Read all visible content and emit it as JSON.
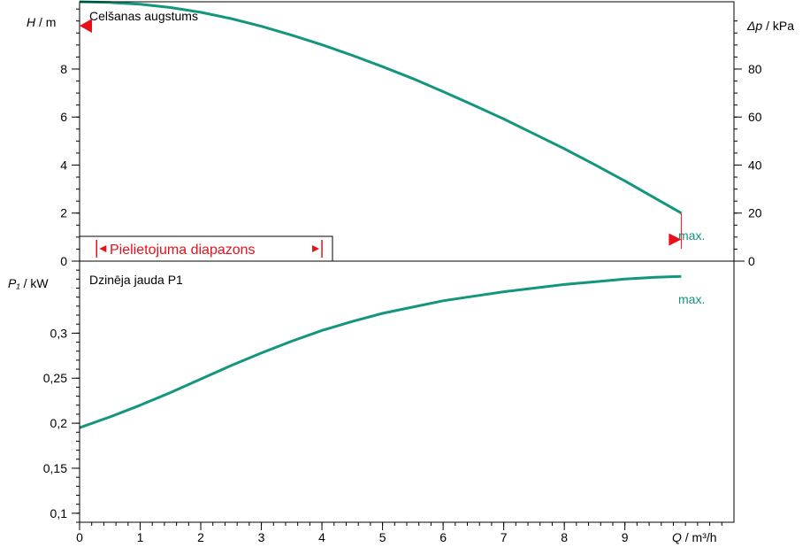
{
  "colors": {
    "curve": "#13967d",
    "marker": "#e8101a",
    "axis": "#000000",
    "grid": "#000000"
  },
  "x_axis": {
    "label_var": "Q",
    "label_unit": " / m³/h",
    "ticks": [
      "0",
      "1",
      "2",
      "3",
      "4",
      "5",
      "6",
      "7",
      "8",
      "9"
    ]
  },
  "head_panel": {
    "title": "Celšanas augstums",
    "ylabel_var": "H",
    "ylabel_unit": " / m",
    "y_ticks": [
      "0",
      "2",
      "4",
      "6",
      "8"
    ],
    "right_label_var": "Δp",
    "right_label_unit": " / kPa",
    "right_ticks": [
      "0",
      "20",
      "40",
      "60",
      "80"
    ],
    "range_label": "Pielietojuma diapazons",
    "max_label": "max."
  },
  "power_panel": {
    "title": "Dzinēja jauda P1",
    "ylabel_var": "P₁",
    "ylabel_unit": " / kW",
    "y_ticks": [
      "0,1",
      "0,15",
      "0,2",
      "0,25",
      "0,3"
    ],
    "max_label": "max."
  },
  "chart_data": [
    {
      "type": "line",
      "title": "Celšanas augstums",
      "xlabel": "Q / m³/h",
      "ylabel": "H / m",
      "y2label": "Δp / kPa",
      "xlim": [
        0,
        10.8
      ],
      "ylim": [
        0,
        10.8
      ],
      "y2lim": [
        0,
        108
      ],
      "x": [
        0,
        0.5,
        1,
        1.5,
        2,
        2.5,
        3,
        3.5,
        4,
        4.5,
        5,
        5.5,
        6,
        6.5,
        7,
        7.5,
        8,
        8.5,
        9,
        9.5,
        9.93
      ],
      "y": [
        10.8,
        10.77,
        10.7,
        10.56,
        10.36,
        10.1,
        9.78,
        9.41,
        9.01,
        8.57,
        8.1,
        7.6,
        7.06,
        6.5,
        5.92,
        5.3,
        4.68,
        4.02,
        3.34,
        2.62,
        2.0
      ],
      "series": [
        {
          "values": [
            10.8,
            10.77,
            10.7,
            10.56,
            10.36,
            10.1,
            9.78,
            9.41,
            9.01,
            8.57,
            8.1,
            7.6,
            7.06,
            6.5,
            5.92,
            5.3,
            4.68,
            4.02,
            3.34,
            2.62,
            2.0
          ]
        }
      ],
      "markers": {
        "left_y": 9.8,
        "right_x": 9.93,
        "right_y": 0.9
      },
      "range": [
        0.15,
        4.0
      ],
      "grid": true
    },
    {
      "type": "line",
      "title": "Dzinēja jauda P1",
      "xlabel": "Q / m³/h",
      "ylabel": "P₁ / kW",
      "xlim": [
        0,
        10.8
      ],
      "ylim": [
        0.09,
        0.38
      ],
      "x": [
        0,
        0.5,
        1,
        1.5,
        2,
        2.5,
        3,
        3.5,
        4,
        4.5,
        5,
        5.5,
        6,
        6.5,
        7,
        7.5,
        8,
        8.5,
        9,
        9.5,
        9.93
      ],
      "y": [
        0.195,
        0.207,
        0.22,
        0.234,
        0.249,
        0.264,
        0.278,
        0.291,
        0.303,
        0.313,
        0.322,
        0.329,
        0.336,
        0.341,
        0.346,
        0.35,
        0.354,
        0.357,
        0.36,
        0.362,
        0.363
      ],
      "series": [
        {
          "values": [
            0.195,
            0.207,
            0.22,
            0.234,
            0.249,
            0.264,
            0.278,
            0.291,
            0.303,
            0.313,
            0.322,
            0.329,
            0.336,
            0.341,
            0.346,
            0.35,
            0.354,
            0.357,
            0.36,
            0.362,
            0.363
          ]
        }
      ],
      "grid": true
    }
  ]
}
